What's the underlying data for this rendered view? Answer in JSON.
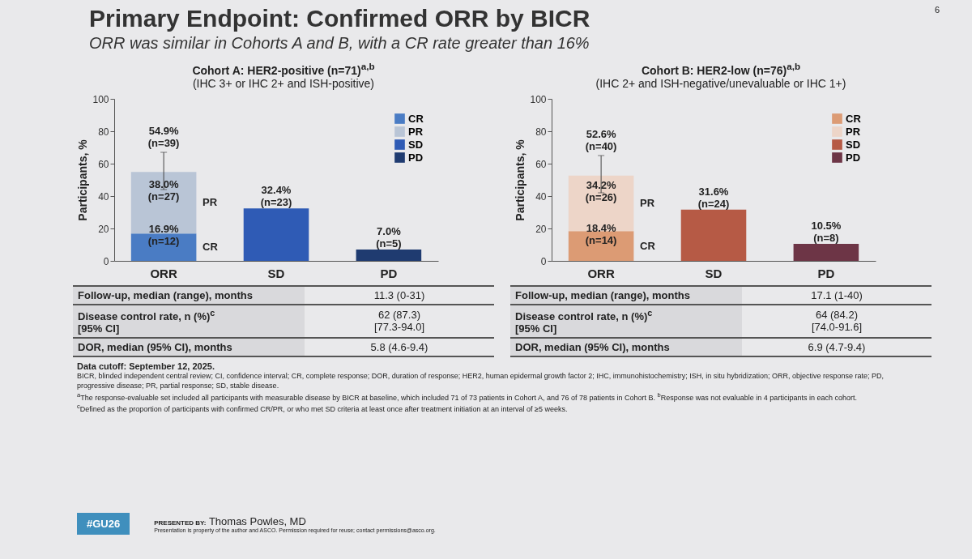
{
  "chart_data": [
    {
      "type": "bar",
      "title": "Cohort A: HER2-positive (n=71)$^{a,b}$",
      "subtitle": "(IHC 3+ or IHC 2+ and ISH-positive)",
      "ylabel": "Participants, %",
      "categories": [
        "ORR",
        "SD",
        "PD"
      ],
      "stacked": true,
      "ylim": [
        0,
        100
      ],
      "yticks": [
        0,
        20,
        40,
        60,
        80,
        100
      ],
      "grid": false,
      "legend": "top right",
      "series": [
        {
          "name": "CR",
          "color": "#4a7cc4",
          "values": [
            16.9,
            null,
            null
          ],
          "value_labels": [
            "16.9%\n(n=12)",
            null,
            null
          ]
        },
        {
          "name": "PR",
          "color": "#b9c5d6",
          "values": [
            38.0,
            null,
            null
          ],
          "value_labels": [
            "38.0%\n(n=27)",
            null,
            null
          ],
          "errors": [
            [
              44,
              67
            ],
            null,
            null
          ]
        },
        {
          "name": "SD",
          "color": "#2f5bb5",
          "values": [
            null,
            32.4,
            null
          ],
          "value_labels": [
            null,
            "32.4%\n(n=23)",
            null
          ]
        },
        {
          "name": "PD",
          "color": "#1f3b70",
          "values": [
            null,
            null,
            7.0
          ],
          "value_labels": [
            null,
            null,
            "7.0%\n(n=5)"
          ]
        }
      ],
      "totals": [
        "54.9%\n(n=39)",
        null,
        null
      ],
      "annotations": [
        "Primary Endpoint: Confirmed ORR by BICR",
        "ORR was similar in Cohorts A and B, with a CR rate greater than 16%",
        "6",
        "Follow-up, median (range), months",
        "11.3 (0-31)",
        "Disease control rate, n (%)$^{c}$\n[95% CI]",
        "62 (87.3)\n[77.3-94.0]",
        "DOR, median (95% CI), months",
        "5.8 (4.6-9.4)",
        "Data cutoff: September 12, 2025.",
        "BICR, blinded independent central review; CI, confidence interval; CR, complete response; DOR, duration of response; HER2, human epidermal growth factor 2; IHC, immunohistochemistry; ISH, in situ hybridization; ORR, objective response rate; PD, progressive disease; PR, partial response; SD, stable disease.",
        "$^{a}$The response-evaluable set included all participants with measurable disease by BICR at baseline, which included 71 of 73 patients in Cohort A, and 76 of 78 patients in Cohort B. $^{b}$Response was not evaluable in 4 participants in each cohort.",
        "$^{c}$Defined as the proportion of participants with confirmed CR/PR, or who met SD criteria at least once after treatment initiation at an interval of ≥5 weeks.",
        "#GU26",
        "PRESENTED BY:",
        "Thomas Powles, MD",
        "Presentation is property of the author and ASCO. Permission required for reuse; contact permissions@asco.org."
      ]
    },
    {
      "type": "bar",
      "title": "Cohort B: HER2-low (n=76)$^{a,b}$",
      "subtitle": "(IHC 2+ and ISH-negative/unevaluable or IHC 1+)",
      "ylabel": "Participants, %",
      "categories": [
        "ORR",
        "SD",
        "PD"
      ],
      "stacked": true,
      "ylim": [
        0,
        100
      ],
      "yticks": [
        0,
        20,
        40,
        60,
        80,
        100
      ],
      "grid": false,
      "legend": "top right",
      "series": [
        {
          "name": "CR",
          "color": "#dc9b74",
          "values": [
            18.4,
            null,
            null
          ],
          "value_labels": [
            "18.4%\n(n=14)",
            null,
            null
          ]
        },
        {
          "name": "PR",
          "color": "#edd5c8",
          "values": [
            34.2,
            null,
            null
          ],
          "value_labels": [
            "34.2%\n(n=26)",
            null,
            null
          ],
          "errors": [
            [
              42,
              65
            ],
            null,
            null
          ]
        },
        {
          "name": "SD",
          "color": "#b65a45",
          "values": [
            null,
            31.6,
            null
          ],
          "value_labels": [
            null,
            "31.6%\n(n=24)",
            null
          ]
        },
        {
          "name": "PD",
          "color": "#6d3546",
          "values": [
            null,
            null,
            10.5
          ],
          "value_labels": [
            null,
            null,
            "10.5%\n(n=8)"
          ]
        }
      ],
      "totals": [
        "52.6%\n(n=40)",
        null,
        null
      ],
      "annotations": [
        "Follow-up, median (range), months",
        "17.1 (1-40)",
        "Disease control rate, n (%)$^{c}$\n[95% CI]",
        "64 (84.2)\n[74.0-91.6]",
        "DOR, median (95% CI), months",
        "6.9 (4.7-9.4)"
      ]
    }
  ]
}
